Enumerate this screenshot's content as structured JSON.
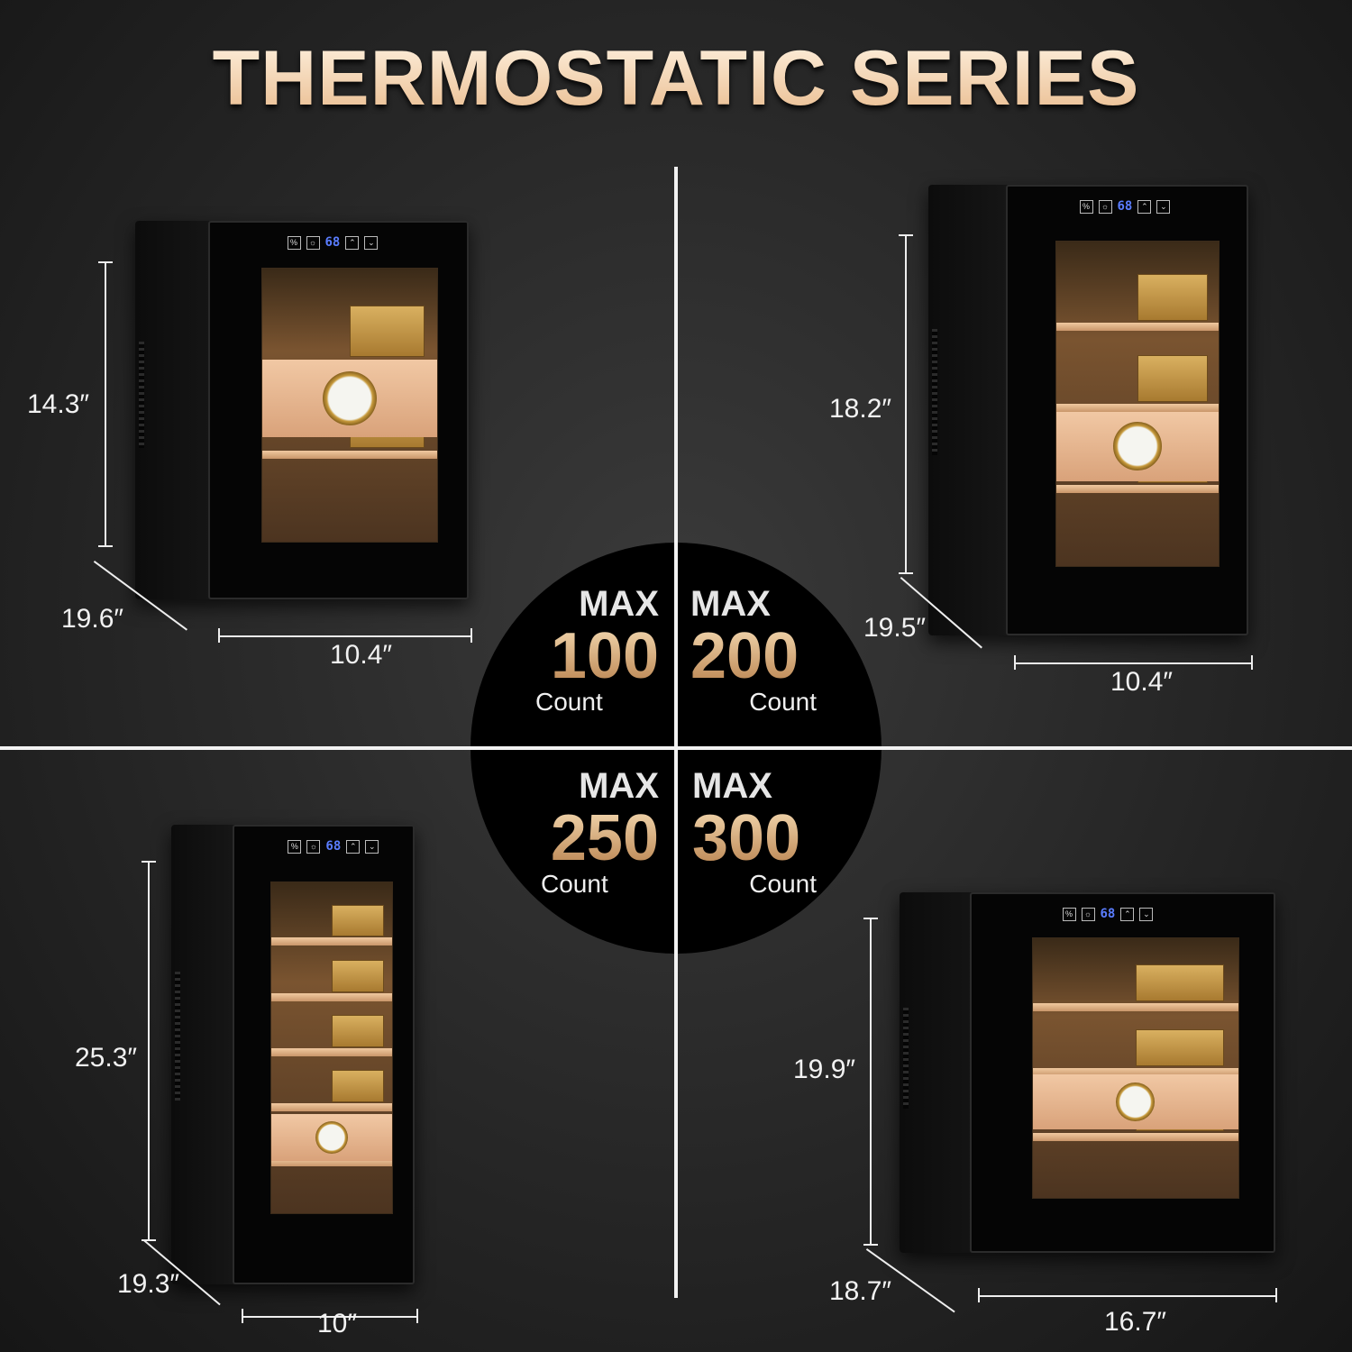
{
  "title": "THERMOSTATIC SERIES",
  "display_reading": "68",
  "products": [
    {
      "max_label": "MAX",
      "capacity": "100",
      "unit": "Count",
      "height": "14.3″",
      "depth": "19.6″",
      "width": "10.4″",
      "shelves": 2
    },
    {
      "max_label": "MAX",
      "capacity": "200",
      "unit": "Count",
      "height": "18.2″",
      "depth": "19.5″",
      "width": "10.4″",
      "shelves": 3
    },
    {
      "max_label": "MAX",
      "capacity": "250",
      "unit": "Count",
      "height": "25.3″",
      "depth": "19.3″",
      "width": "10″",
      "shelves": 5
    },
    {
      "max_label": "MAX",
      "capacity": "300",
      "unit": "Count",
      "height": "19.9″",
      "depth": "18.7″",
      "width": "16.7″",
      "shelves": 3
    }
  ],
  "colors": {
    "gold": "#d9a56f",
    "display": "#5a7dff",
    "background": "#262626"
  }
}
